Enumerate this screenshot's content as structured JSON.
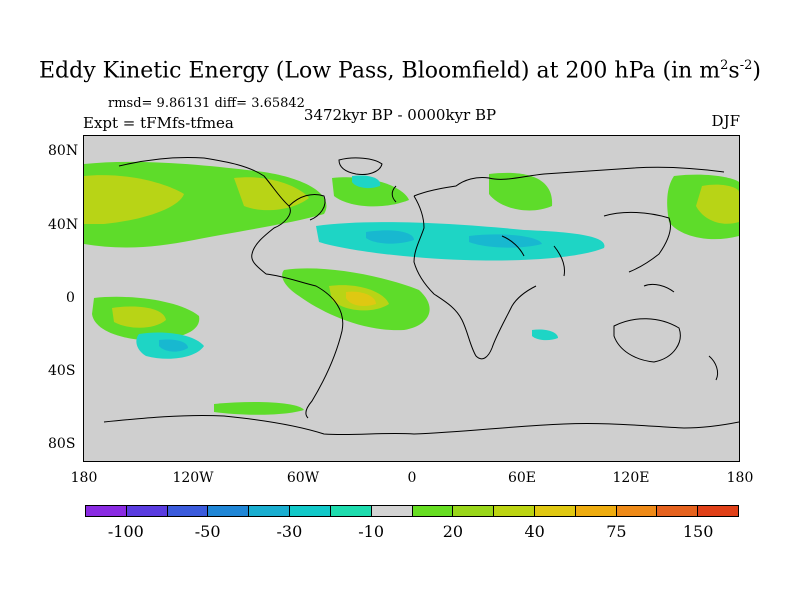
{
  "title": "Eddy Kinetic Energy (Low Pass, Bloomfield) at 200 hPa (in m",
  "title_sup1": "2",
  "title_mid": "s",
  "title_sup2": "-2",
  "title_end": ")",
  "stats": "rmsd= 9.86131 diff= 3.65842",
  "expt": "Expt = tFMfs-tfmea",
  "period": "3472kyr BP - 0000kyr BP",
  "season": "DJF",
  "lat_labels": [
    "80N",
    "40N",
    "0",
    "40S",
    "80S"
  ],
  "lon_labels": [
    "180",
    "120W",
    "60W",
    "0",
    "60E",
    "120E",
    "180"
  ],
  "colorbar": {
    "colors": [
      "#8a2be2",
      "#5a3ce0",
      "#3b5bdc",
      "#1f86d6",
      "#1aaed0",
      "#12c9c9",
      "#1edcae",
      "#d3d3d3",
      "#66dd22",
      "#99d61a",
      "#bcd412",
      "#e0c812",
      "#eeac10",
      "#ee8a18",
      "#e5621e",
      "#e04018"
    ],
    "labels": [
      "-100",
      "-50",
      "-30",
      "-10",
      "20",
      "40",
      "75",
      "150"
    ]
  },
  "colors": {
    "background": "#cfcfcf",
    "green": "#5edc2a",
    "yellow_green": "#b8d416",
    "yellow": "#dfc812",
    "cyan": "#1ed5c5",
    "teal": "#18b8d0",
    "blue": "#2a8ed8"
  }
}
